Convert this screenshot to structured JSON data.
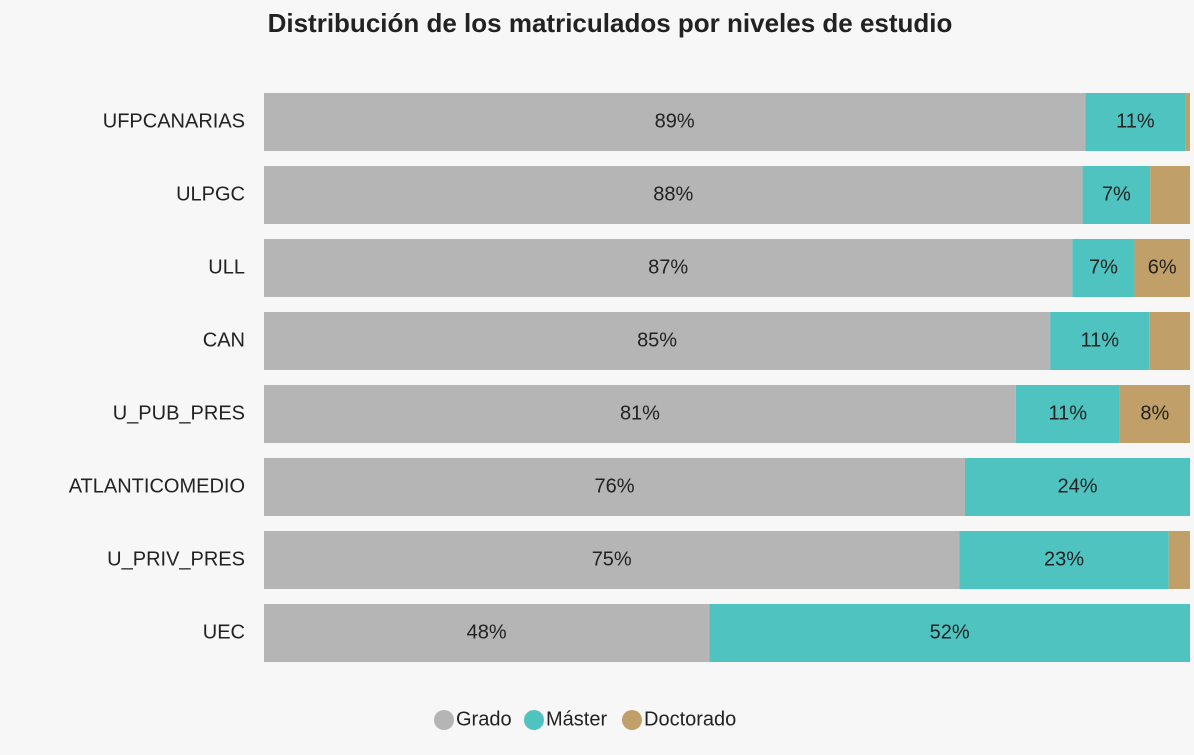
{
  "chart_data": {
    "type": "stacked_barh",
    "title": "Distribución de los matriculados por niveles de estudio",
    "categories": [
      "UFPCANARIAS",
      "ULPGC",
      "ULL",
      "CAN",
      "U_PUB_PRES",
      "ATLANTICOMEDIO",
      "U_PRIV_PRES",
      "UEC"
    ],
    "series": [
      {
        "name": "Grado",
        "color": "#b5b5b5",
        "values": [
          88.7,
          88.4,
          87.3,
          84.9,
          81.2,
          75.7,
          75.1,
          48.1
        ],
        "value_labels": [
          "89%",
          "88%",
          "87%",
          "85%",
          "81%",
          "76%",
          "75%",
          "48%"
        ]
      },
      {
        "name": "Máster",
        "color": "#4fc3c0",
        "values": [
          10.8,
          7.3,
          6.7,
          10.7,
          11.2,
          24.3,
          22.6,
          51.9
        ],
        "value_labels": [
          "11%",
          "7%",
          "7%",
          "11%",
          "11%",
          "24%",
          "23%",
          "52%"
        ]
      },
      {
        "name": "Doctorado",
        "color": "#c0a068",
        "values": [
          0.5,
          4.3,
          6.0,
          4.4,
          7.6,
          0,
          2.3,
          0
        ],
        "value_labels": [
          null,
          null,
          "6%",
          null,
          "8%",
          null,
          null,
          null
        ]
      }
    ],
    "legend": "bottom"
  }
}
